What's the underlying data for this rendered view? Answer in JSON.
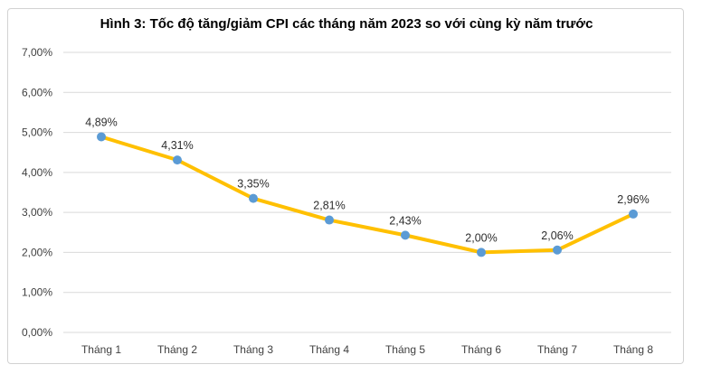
{
  "chart_data": {
    "type": "line",
    "title": "Hình 3: Tốc độ tăng/giảm CPI các tháng năm 2023 so với cùng kỳ năm trước",
    "categories": [
      "Tháng 1",
      "Tháng 2",
      "Tháng 3",
      "Tháng 4",
      "Tháng 5",
      "Tháng 6",
      "Tháng 7",
      "Tháng 8"
    ],
    "values": [
      4.89,
      4.31,
      3.35,
      2.81,
      2.43,
      2.0,
      2.06,
      2.96
    ],
    "data_labels": [
      "4,89%",
      "4,31%",
      "3,35%",
      "2,81%",
      "2,43%",
      "2,00%",
      "2,06%",
      "2,96%"
    ],
    "y_tick_labels": [
      "0,00%",
      "1,00%",
      "2,00%",
      "3,00%",
      "4,00%",
      "5,00%",
      "6,00%",
      "7,00%"
    ],
    "xlabel": "",
    "ylabel": "",
    "ylim": [
      0,
      7
    ],
    "y_step": 1,
    "grid": true,
    "legend": "none",
    "colors": {
      "line": "#FFC000",
      "marker": "#5B9BD5",
      "gridline": "#D9D9D9",
      "axis_text": "#3F3F3F",
      "label_text": "#2E2E2E",
      "title_text": "#000000",
      "frame_border": "#D2D2D2",
      "background": "#FFFFFF"
    }
  }
}
